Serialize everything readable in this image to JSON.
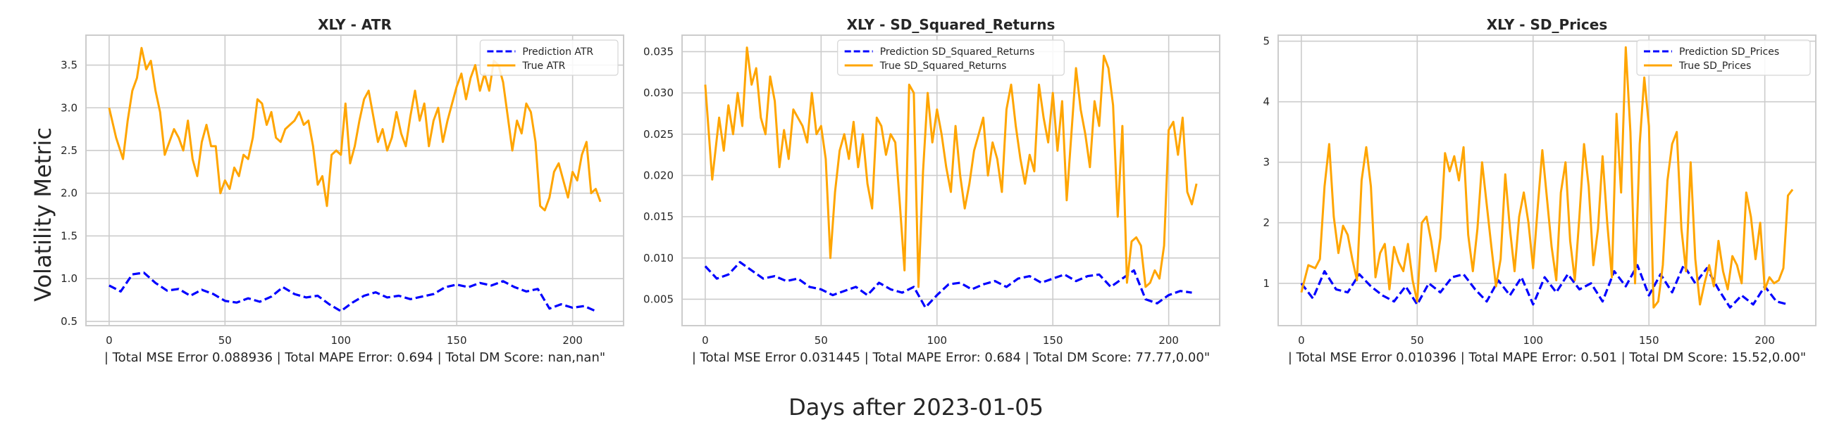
{
  "figure": {
    "ylabel": "Volatility Metric",
    "xlabel": "Days after 2023-01-05"
  },
  "colors": {
    "prediction": "#0000ff",
    "true": "#ffa500",
    "grid": "#cccccc",
    "axes_frame": "#cccccc",
    "text": "#262626"
  },
  "chart_data": [
    {
      "type": "line",
      "title": "XLY - ATR",
      "xlabel": "| Total MSE Error 0.088936 | Total MAPE Error: 0.694 | Total DM Score: nan,nan\"",
      "xlim": [
        -10,
        222
      ],
      "ylim": [
        0.45,
        3.85
      ],
      "xticks": [
        0,
        50,
        100,
        150,
        200
      ],
      "yticks": [
        0.5,
        1.0,
        1.5,
        2.0,
        2.5,
        3.0,
        3.5
      ],
      "ytick_labels": [
        "0.5",
        "1.0",
        "1.5",
        "2.0",
        "2.5",
        "3.0",
        "3.5"
      ],
      "grid": true,
      "legend_position": "top-right",
      "series": [
        {
          "name": "Prediction ATR",
          "style": "dashed",
          "x": [
            0,
            5,
            10,
            15,
            20,
            25,
            30,
            35,
            40,
            45,
            50,
            55,
            60,
            65,
            70,
            75,
            80,
            85,
            90,
            95,
            100,
            105,
            110,
            115,
            120,
            125,
            130,
            135,
            140,
            145,
            150,
            155,
            160,
            165,
            170,
            175,
            180,
            185,
            190,
            195,
            200,
            205,
            210
          ],
          "values": [
            0.92,
            0.85,
            1.05,
            1.07,
            0.95,
            0.86,
            0.88,
            0.8,
            0.87,
            0.82,
            0.74,
            0.72,
            0.77,
            0.73,
            0.79,
            0.9,
            0.82,
            0.78,
            0.8,
            0.7,
            0.62,
            0.72,
            0.8,
            0.84,
            0.78,
            0.8,
            0.76,
            0.79,
            0.82,
            0.9,
            0.93,
            0.9,
            0.95,
            0.92,
            0.97,
            0.9,
            0.85,
            0.88,
            0.65,
            0.7,
            0.66,
            0.68,
            0.62
          ]
        },
        {
          "name": "True ATR",
          "style": "solid",
          "x": [
            0,
            3,
            6,
            8,
            10,
            12,
            14,
            16,
            18,
            20,
            22,
            24,
            26,
            28,
            30,
            32,
            34,
            36,
            38,
            40,
            42,
            44,
            46,
            48,
            50,
            52,
            54,
            56,
            58,
            60,
            62,
            64,
            66,
            68,
            70,
            72,
            74,
            76,
            78,
            80,
            82,
            84,
            86,
            88,
            90,
            92,
            94,
            96,
            98,
            100,
            102,
            104,
            106,
            108,
            110,
            112,
            114,
            116,
            118,
            120,
            122,
            124,
            126,
            128,
            130,
            132,
            134,
            136,
            138,
            140,
            142,
            144,
            146,
            148,
            150,
            152,
            154,
            156,
            158,
            160,
            162,
            164,
            166,
            168,
            170,
            172,
            174,
            176,
            178,
            180,
            182,
            184,
            186,
            188,
            190,
            192,
            194,
            196,
            198,
            200,
            202,
            204,
            206,
            208,
            210,
            212
          ],
          "values": [
            3.0,
            2.65,
            2.4,
            2.85,
            3.2,
            3.35,
            3.7,
            3.45,
            3.55,
            3.2,
            2.95,
            2.45,
            2.6,
            2.75,
            2.65,
            2.5,
            2.85,
            2.4,
            2.2,
            2.6,
            2.8,
            2.55,
            2.55,
            2.0,
            2.15,
            2.05,
            2.3,
            2.2,
            2.45,
            2.4,
            2.65,
            3.1,
            3.05,
            2.8,
            2.95,
            2.65,
            2.6,
            2.75,
            2.8,
            2.85,
            2.95,
            2.8,
            2.85,
            2.55,
            2.1,
            2.2,
            1.85,
            2.45,
            2.5,
            2.45,
            3.05,
            2.35,
            2.55,
            2.85,
            3.1,
            3.2,
            2.9,
            2.6,
            2.75,
            2.5,
            2.65,
            2.95,
            2.7,
            2.55,
            2.9,
            3.2,
            2.85,
            3.05,
            2.55,
            2.85,
            3.0,
            2.6,
            2.85,
            3.05,
            3.25,
            3.4,
            3.1,
            3.35,
            3.5,
            3.2,
            3.4,
            3.2,
            3.55,
            3.5,
            3.3,
            2.9,
            2.5,
            2.85,
            2.7,
            3.05,
            2.95,
            2.6,
            1.85,
            1.8,
            1.95,
            2.25,
            2.35,
            2.15,
            1.95,
            2.25,
            2.15,
            2.45,
            2.6,
            2.0,
            2.05,
            1.9
          ]
        }
      ]
    },
    {
      "type": "line",
      "title": "XLY - SD_Squared_Returns",
      "xlabel": "| Total MSE Error 0.031445 | Total MAPE Error: 0.684 | Total DM Score: 77.77,0.00\"",
      "xlim": [
        -10,
        222
      ],
      "ylim": [
        0.0018,
        0.037
      ],
      "xticks": [
        0,
        50,
        100,
        150,
        200
      ],
      "yticks": [
        0.005,
        0.01,
        0.015,
        0.02,
        0.025,
        0.03,
        0.035
      ],
      "ytick_labels": [
        "0.005",
        "0.010",
        "0.015",
        "0.020",
        "0.025",
        "0.030",
        "0.035"
      ],
      "grid": true,
      "legend_position": "top-center",
      "series": [
        {
          "name": "Prediction SD_Squared_Returns",
          "style": "dashed",
          "x": [
            0,
            5,
            10,
            15,
            20,
            25,
            30,
            35,
            40,
            45,
            50,
            55,
            60,
            65,
            70,
            75,
            80,
            85,
            90,
            95,
            100,
            105,
            110,
            115,
            120,
            125,
            130,
            135,
            140,
            145,
            150,
            155,
            160,
            165,
            170,
            175,
            180,
            185,
            190,
            195,
            200,
            205,
            210
          ],
          "values": [
            0.009,
            0.0075,
            0.008,
            0.0095,
            0.0085,
            0.0075,
            0.0078,
            0.0072,
            0.0075,
            0.0065,
            0.0062,
            0.0055,
            0.006,
            0.0065,
            0.0055,
            0.007,
            0.0062,
            0.0058,
            0.0065,
            0.004,
            0.0055,
            0.0068,
            0.007,
            0.0062,
            0.0068,
            0.0072,
            0.0065,
            0.0075,
            0.0078,
            0.007,
            0.0075,
            0.008,
            0.0072,
            0.0078,
            0.008,
            0.0065,
            0.0075,
            0.0085,
            0.005,
            0.0045,
            0.0055,
            0.006,
            0.0058
          ]
        },
        {
          "name": "True SD_Squared_Returns",
          "style": "solid",
          "x": [
            0,
            3,
            6,
            8,
            10,
            12,
            14,
            16,
            18,
            20,
            22,
            24,
            26,
            28,
            30,
            32,
            34,
            36,
            38,
            40,
            42,
            44,
            46,
            48,
            50,
            52,
            54,
            56,
            58,
            60,
            62,
            64,
            66,
            68,
            70,
            72,
            74,
            76,
            78,
            80,
            82,
            84,
            86,
            88,
            90,
            92,
            94,
            96,
            98,
            100,
            102,
            104,
            106,
            108,
            110,
            112,
            114,
            116,
            118,
            120,
            122,
            124,
            126,
            128,
            130,
            132,
            134,
            136,
            138,
            140,
            142,
            144,
            146,
            148,
            150,
            152,
            154,
            156,
            158,
            160,
            162,
            164,
            166,
            168,
            170,
            172,
            174,
            176,
            178,
            180,
            182,
            184,
            186,
            188,
            190,
            192,
            194,
            196,
            198,
            200,
            202,
            204,
            206,
            208,
            210,
            212
          ],
          "values": [
            0.031,
            0.0195,
            0.027,
            0.023,
            0.0285,
            0.025,
            0.03,
            0.026,
            0.0355,
            0.031,
            0.033,
            0.027,
            0.025,
            0.032,
            0.029,
            0.021,
            0.0255,
            0.022,
            0.028,
            0.027,
            0.026,
            0.024,
            0.03,
            0.025,
            0.026,
            0.022,
            0.01,
            0.018,
            0.023,
            0.025,
            0.022,
            0.0265,
            0.021,
            0.025,
            0.019,
            0.016,
            0.027,
            0.026,
            0.0225,
            0.025,
            0.024,
            0.0165,
            0.0085,
            0.031,
            0.03,
            0.0065,
            0.0205,
            0.03,
            0.024,
            0.028,
            0.025,
            0.021,
            0.018,
            0.026,
            0.02,
            0.016,
            0.019,
            0.023,
            0.025,
            0.027,
            0.02,
            0.024,
            0.022,
            0.018,
            0.028,
            0.031,
            0.026,
            0.022,
            0.019,
            0.0225,
            0.0205,
            0.031,
            0.027,
            0.024,
            0.03,
            0.023,
            0.029,
            0.017,
            0.025,
            0.033,
            0.028,
            0.025,
            0.021,
            0.029,
            0.026,
            0.0345,
            0.033,
            0.0285,
            0.015,
            0.026,
            0.007,
            0.012,
            0.0125,
            0.0115,
            0.0065,
            0.007,
            0.0085,
            0.0075,
            0.0115,
            0.0255,
            0.0265,
            0.0225,
            0.027,
            0.018,
            0.0165,
            0.019
          ]
        }
      ]
    },
    {
      "type": "line",
      "title": "XLY - SD_Prices",
      "xlabel": "| Total MSE Error 0.010396 | Total MAPE Error: 0.501 | Total DM Score: 15.52,0.00\"",
      "xlim": [
        -10,
        222
      ],
      "ylim": [
        0.3,
        5.1
      ],
      "xticks": [
        0,
        50,
        100,
        150,
        200
      ],
      "yticks": [
        1,
        2,
        3,
        4,
        5
      ],
      "ytick_labels": [
        "1",
        "2",
        "3",
        "4",
        "5"
      ],
      "grid": true,
      "legend_position": "top-right",
      "series": [
        {
          "name": "Prediction SD_Prices",
          "style": "dashed",
          "x": [
            0,
            5,
            10,
            15,
            20,
            25,
            30,
            35,
            40,
            45,
            50,
            55,
            60,
            65,
            70,
            75,
            80,
            85,
            90,
            95,
            100,
            105,
            110,
            115,
            120,
            125,
            130,
            135,
            140,
            145,
            150,
            155,
            160,
            165,
            170,
            175,
            180,
            185,
            190,
            195,
            200,
            205,
            210
          ],
          "values": [
            1.0,
            0.75,
            1.2,
            0.9,
            0.85,
            1.15,
            0.95,
            0.8,
            0.7,
            0.95,
            0.65,
            1.0,
            0.85,
            1.1,
            1.15,
            0.9,
            0.7,
            1.05,
            0.8,
            1.1,
            0.65,
            1.1,
            0.85,
            1.15,
            0.9,
            1.0,
            0.7,
            1.2,
            0.95,
            1.3,
            0.8,
            1.15,
            0.85,
            1.3,
            1.0,
            1.25,
            0.9,
            0.6,
            0.8,
            0.65,
            0.95,
            0.7,
            0.65
          ]
        },
        {
          "name": "True SD_Prices",
          "style": "solid",
          "x": [
            0,
            3,
            6,
            8,
            10,
            12,
            14,
            16,
            18,
            20,
            22,
            24,
            26,
            28,
            30,
            32,
            34,
            36,
            38,
            40,
            42,
            44,
            46,
            48,
            50,
            52,
            54,
            56,
            58,
            60,
            62,
            64,
            66,
            68,
            70,
            72,
            74,
            76,
            78,
            80,
            82,
            84,
            86,
            88,
            90,
            92,
            94,
            96,
            98,
            100,
            102,
            104,
            106,
            108,
            110,
            112,
            114,
            116,
            118,
            120,
            122,
            124,
            126,
            128,
            130,
            132,
            134,
            136,
            138,
            140,
            142,
            144,
            146,
            148,
            150,
            152,
            154,
            156,
            158,
            160,
            162,
            164,
            166,
            168,
            170,
            172,
            174,
            176,
            178,
            180,
            182,
            184,
            186,
            188,
            190,
            192,
            194,
            196,
            198,
            200,
            202,
            204,
            206,
            208,
            210,
            212
          ],
          "values": [
            0.85,
            1.3,
            1.25,
            1.4,
            2.6,
            3.3,
            2.1,
            1.5,
            1.95,
            1.8,
            1.4,
            1.05,
            2.7,
            3.25,
            2.6,
            1.1,
            1.5,
            1.65,
            0.9,
            1.6,
            1.35,
            1.2,
            1.65,
            1.05,
            0.7,
            2.0,
            2.1,
            1.7,
            1.2,
            1.75,
            3.15,
            2.85,
            3.1,
            2.7,
            3.25,
            1.8,
            1.2,
            1.9,
            3.0,
            2.3,
            1.6,
            0.95,
            1.4,
            2.8,
            1.9,
            1.2,
            2.1,
            2.5,
            2.0,
            1.25,
            2.25,
            3.2,
            2.4,
            1.6,
            1.05,
            2.5,
            3.0,
            1.7,
            1.05,
            2.1,
            3.3,
            2.6,
            1.3,
            1.9,
            3.1,
            2.0,
            1.1,
            3.8,
            2.5,
            4.9,
            3.5,
            1.0,
            3.3,
            4.4,
            3.6,
            0.6,
            0.7,
            1.3,
            2.7,
            3.3,
            3.5,
            1.9,
            1.2,
            3.0,
            1.4,
            0.65,
            1.0,
            1.3,
            0.95,
            1.7,
            1.2,
            0.9,
            1.45,
            1.3,
            1.0,
            2.5,
            2.1,
            1.4,
            2.0,
            0.9,
            1.1,
            1.0,
            1.05,
            1.25,
            2.45,
            2.55
          ]
        }
      ]
    }
  ]
}
